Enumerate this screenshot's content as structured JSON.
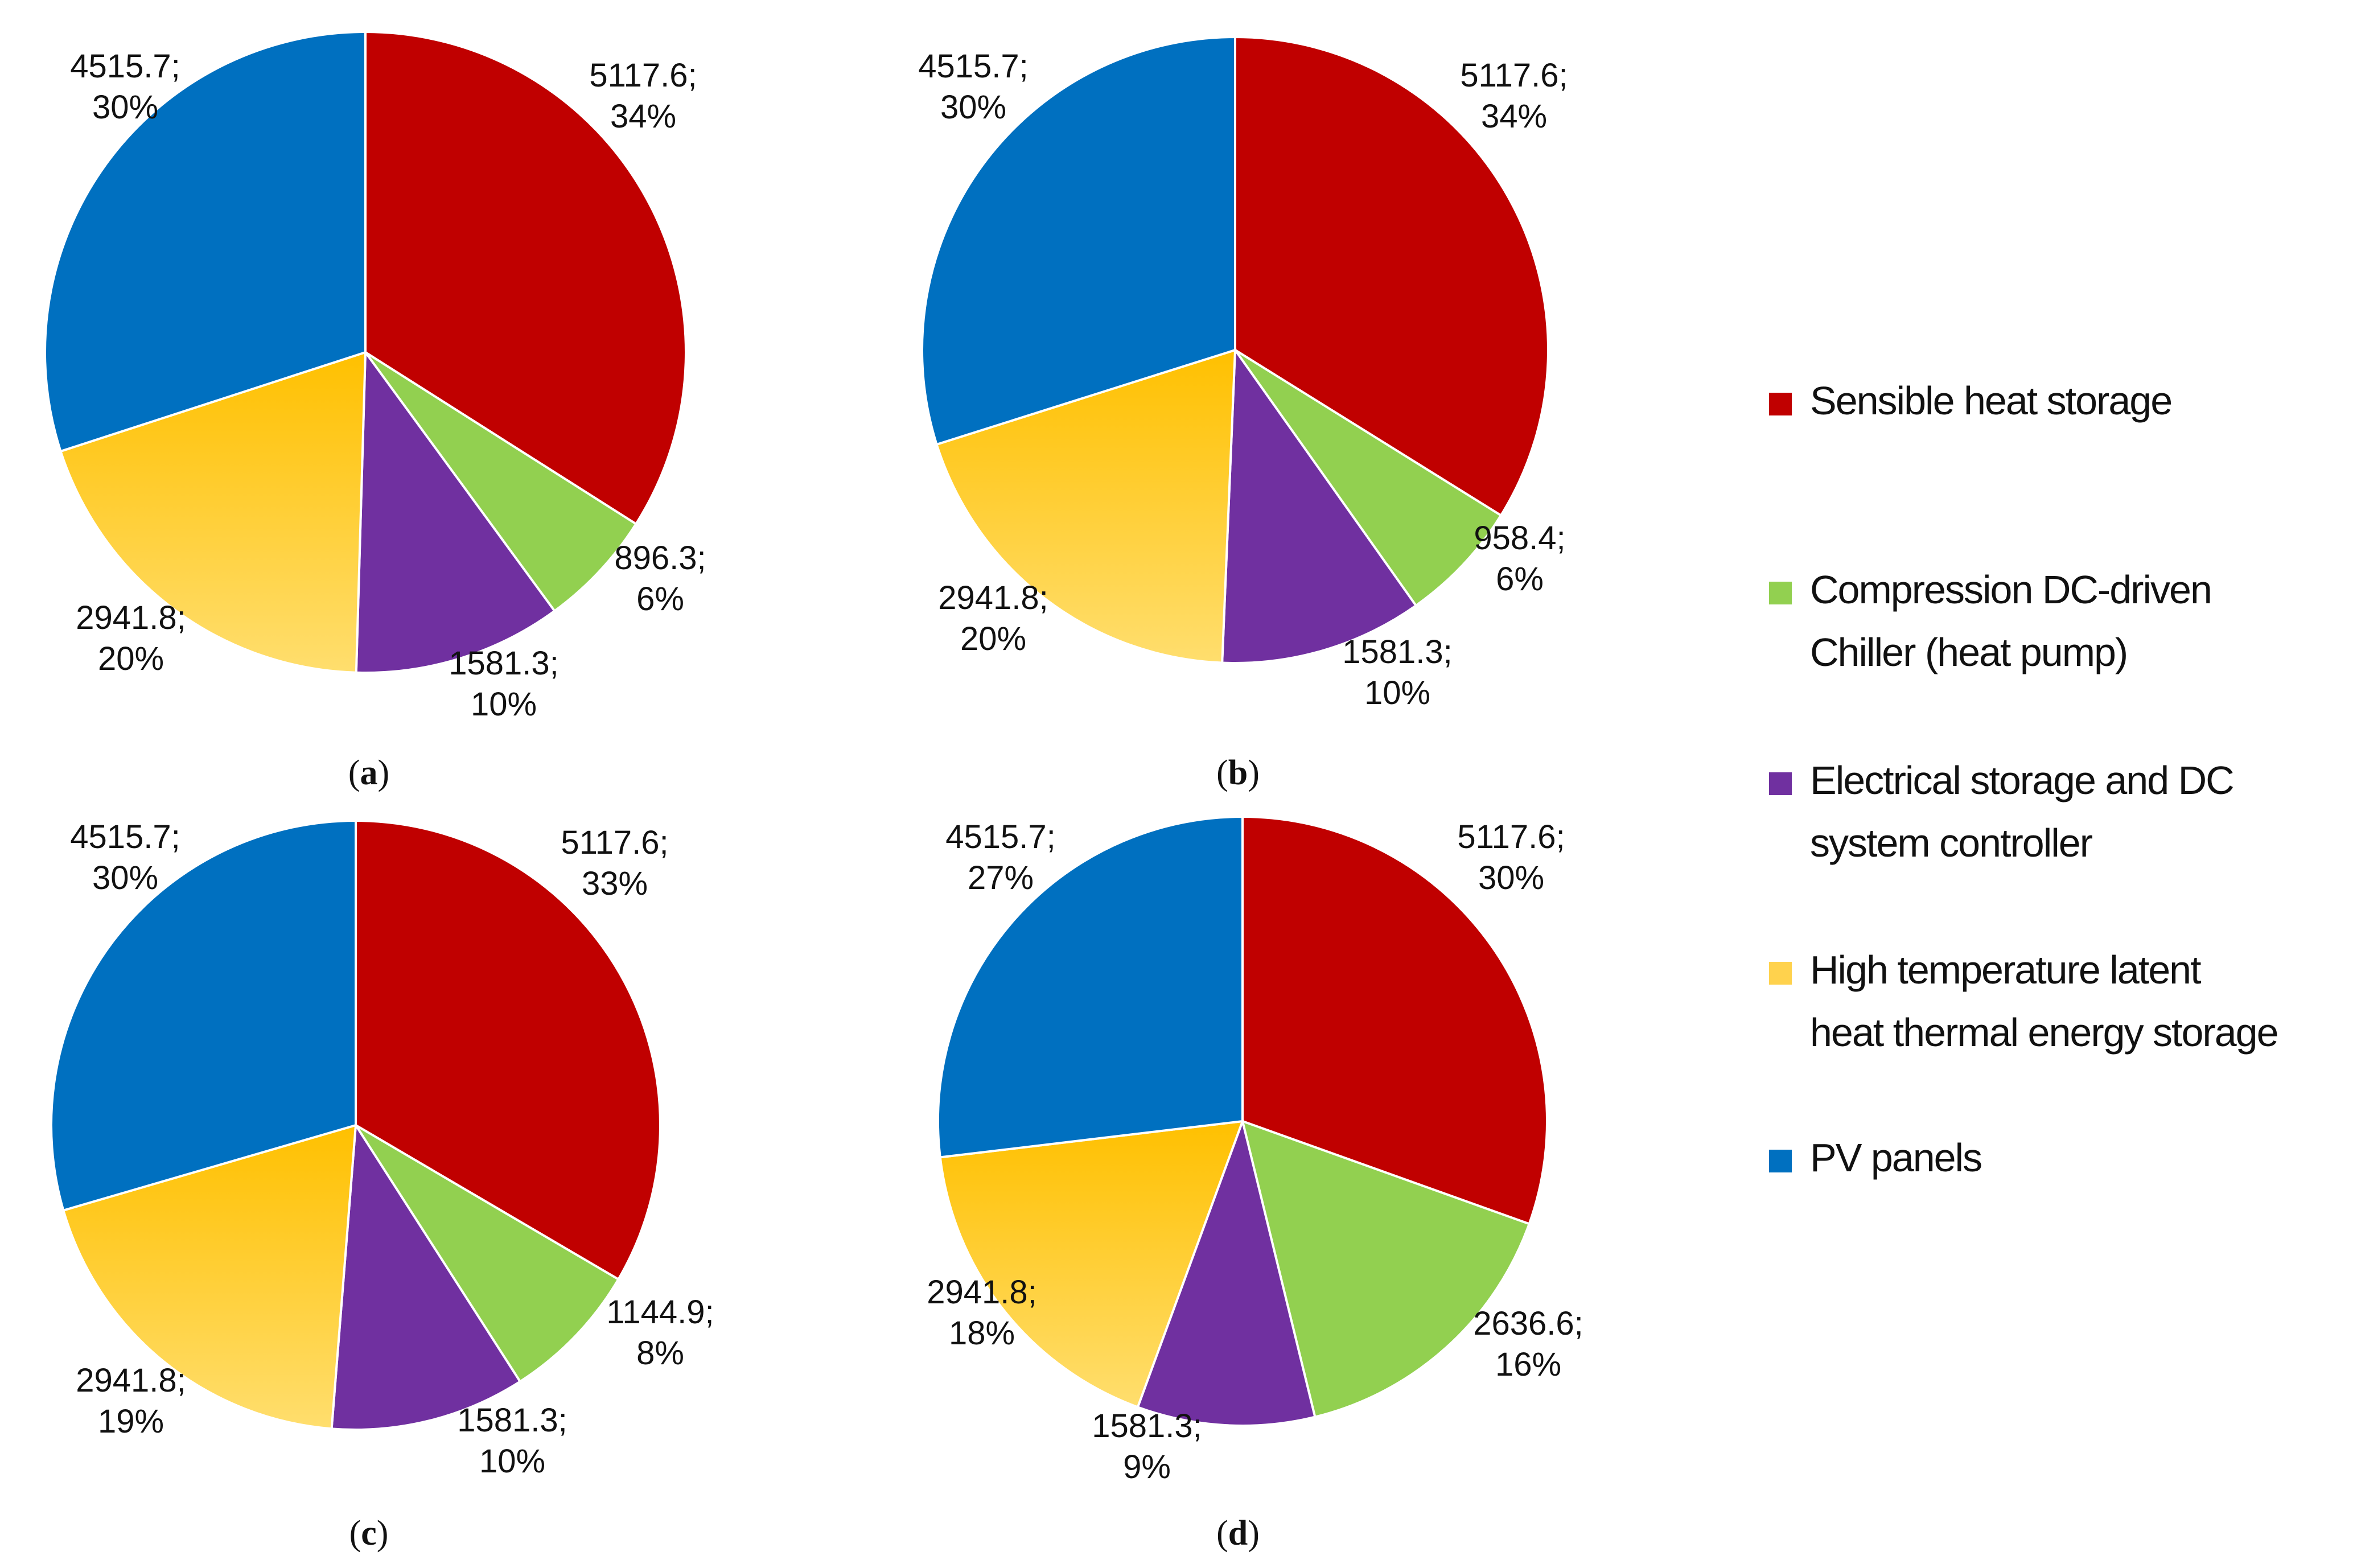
{
  "legend": [
    {
      "key": "sensible",
      "lines": [
        "Sensible heat storage"
      ],
      "color": "#C00000"
    },
    {
      "key": "chiller",
      "lines": [
        "Compression DC-driven",
        "Chiller (heat pump)"
      ],
      "color": "#92D050"
    },
    {
      "key": "electrical",
      "lines": [
        "Electrical storage and DC",
        "system controller"
      ],
      "color": "#7030A0"
    },
    {
      "key": "latent",
      "lines": [
        "High temperature latent",
        "heat thermal energy storage"
      ],
      "color": "#FFC000"
    },
    {
      "key": "pv",
      "lines": [
        "PV panels"
      ],
      "color": "#0070C0"
    }
  ],
  "chart_data": [
    {
      "type": "pie",
      "panel": "a",
      "slices": [
        {
          "category": "Sensible heat storage",
          "value": 5117.6,
          "percent": 34,
          "value_label": "5117.6;",
          "percent_label": "34%"
        },
        {
          "category": "Compression DC-driven Chiller (heat pump)",
          "value": 896.3,
          "percent": 6,
          "value_label": "896.3;",
          "percent_label": "6%"
        },
        {
          "category": "Electrical storage and DC system controller",
          "value": 1581.3,
          "percent": 10,
          "value_label": "1581.3;",
          "percent_label": "10%"
        },
        {
          "category": "High temperature latent heat thermal energy storage",
          "value": 2941.8,
          "percent": 20,
          "value_label": "2941.8;",
          "percent_label": "20%"
        },
        {
          "category": "PV panels",
          "value": 4515.7,
          "percent": 30,
          "value_label": "4515.7;",
          "percent_label": "30%"
        }
      ]
    },
    {
      "type": "pie",
      "panel": "b",
      "slices": [
        {
          "category": "Sensible heat storage",
          "value": 5117.6,
          "percent": 34,
          "value_label": "5117.6;",
          "percent_label": "34%"
        },
        {
          "category": "Compression DC-driven Chiller (heat pump)",
          "value": 958.4,
          "percent": 6,
          "value_label": "958.4;",
          "percent_label": "6%"
        },
        {
          "category": "Electrical storage and DC system controller",
          "value": 1581.3,
          "percent": 10,
          "value_label": "1581.3;",
          "percent_label": "10%"
        },
        {
          "category": "High temperature latent heat thermal energy storage",
          "value": 2941.8,
          "percent": 20,
          "value_label": "2941.8;",
          "percent_label": "20%"
        },
        {
          "category": "PV panels",
          "value": 4515.7,
          "percent": 30,
          "value_label": "4515.7;",
          "percent_label": "30%"
        }
      ]
    },
    {
      "type": "pie",
      "panel": "c",
      "slices": [
        {
          "category": "Sensible heat storage",
          "value": 5117.6,
          "percent": 33,
          "value_label": "5117.6;",
          "percent_label": "33%"
        },
        {
          "category": "Compression DC-driven Chiller (heat pump)",
          "value": 1144.9,
          "percent": 8,
          "value_label": "1144.9;",
          "percent_label": "8%"
        },
        {
          "category": "Electrical storage and DC system controller",
          "value": 1581.3,
          "percent": 10,
          "value_label": "1581.3;",
          "percent_label": "10%"
        },
        {
          "category": "High temperature latent heat thermal energy storage",
          "value": 2941.8,
          "percent": 19,
          "value_label": "2941.8;",
          "percent_label": "19%"
        },
        {
          "category": "PV panels",
          "value": 4515.7,
          "percent": 30,
          "value_label": "4515.7;",
          "percent_label": "30%"
        }
      ]
    },
    {
      "type": "pie",
      "panel": "d",
      "slices": [
        {
          "category": "Sensible heat storage",
          "value": 5117.6,
          "percent": 30,
          "value_label": "5117.6;",
          "percent_label": "30%"
        },
        {
          "category": "Compression DC-driven Chiller (heat pump)",
          "value": 2636.6,
          "percent": 16,
          "value_label": "2636.6;",
          "percent_label": "16%"
        },
        {
          "category": "Electrical storage and DC system controller",
          "value": 1581.3,
          "percent": 9,
          "value_label": "1581.3;",
          "percent_label": "9%"
        },
        {
          "category": "High temperature latent heat thermal energy storage",
          "value": 2941.8,
          "percent": 18,
          "value_label": "2941.8;",
          "percent_label": "18%"
        },
        {
          "category": "PV panels",
          "value": 4515.7,
          "percent": 27,
          "value_label": "4515.7;",
          "percent_label": "27%"
        }
      ]
    }
  ],
  "panel_labels": [
    {
      "open": "(",
      "letter": "a",
      "close": ")"
    },
    {
      "open": "(",
      "letter": "b",
      "close": ")"
    },
    {
      "open": "(",
      "letter": "c",
      "close": ")"
    },
    {
      "open": "(",
      "letter": "d",
      "close": ")"
    }
  ]
}
